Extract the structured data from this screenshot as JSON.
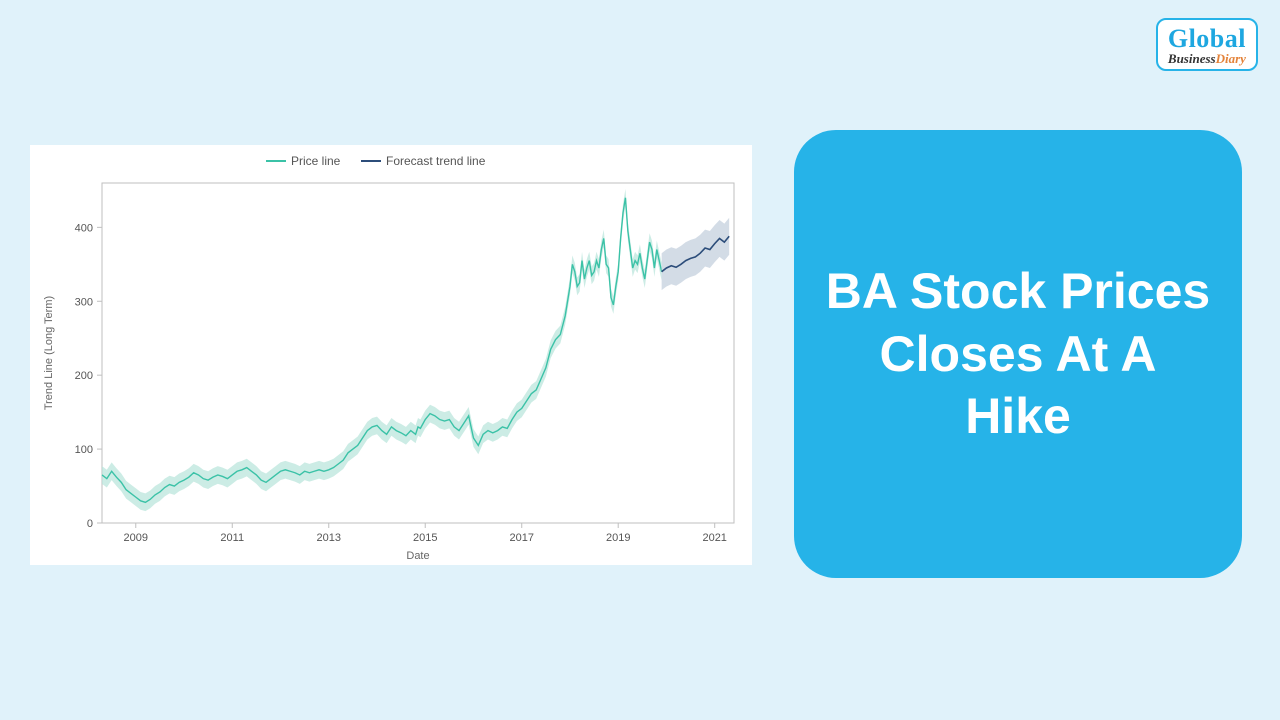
{
  "logo": {
    "top": "Global",
    "business": "Business",
    "diary": "Diary"
  },
  "card": {
    "title": "BA Stock Prices Closes At A Hike"
  },
  "chart": {
    "type": "line",
    "background_color": "#ffffff",
    "plot_border_color": "#bfbfbf",
    "grid_color": "#e5e5e5",
    "ylabel": "Trend Line (Long Term)",
    "xlabel": "Date",
    "label_fontsize": 11,
    "tick_fontsize": 11,
    "ylim": [
      0,
      460
    ],
    "yticks": [
      0,
      100,
      200,
      300,
      400
    ],
    "xticks": [
      "2009",
      "2011",
      "2013",
      "2015",
      "2017",
      "2019",
      "2021"
    ],
    "xrange": [
      2008.3,
      2021.4
    ],
    "legend": [
      {
        "label": "Price line",
        "color": "#3bc2a7",
        "style": "solid"
      },
      {
        "label": "Forecast trend line",
        "color": "#2c4d7a",
        "style": "solid"
      }
    ],
    "price_color": "#3bc2a7",
    "price_band_color": "#b7e4da",
    "price_line_width": 1.4,
    "price_band_halfwidth": 12,
    "forecast_color": "#2c4d7a",
    "forecast_band_color": "#c8d3e0",
    "forecast_line_width": 1.6,
    "forecast_band_halfwidth": 25,
    "price_series": [
      [
        2008.3,
        65
      ],
      [
        2008.4,
        60
      ],
      [
        2008.5,
        70
      ],
      [
        2008.6,
        62
      ],
      [
        2008.7,
        55
      ],
      [
        2008.8,
        45
      ],
      [
        2008.9,
        40
      ],
      [
        2009.0,
        35
      ],
      [
        2009.1,
        30
      ],
      [
        2009.2,
        28
      ],
      [
        2009.3,
        32
      ],
      [
        2009.4,
        38
      ],
      [
        2009.5,
        42
      ],
      [
        2009.6,
        48
      ],
      [
        2009.7,
        52
      ],
      [
        2009.8,
        50
      ],
      [
        2009.9,
        55
      ],
      [
        2010.0,
        58
      ],
      [
        2010.1,
        62
      ],
      [
        2010.2,
        68
      ],
      [
        2010.3,
        65
      ],
      [
        2010.4,
        60
      ],
      [
        2010.5,
        58
      ],
      [
        2010.6,
        62
      ],
      [
        2010.7,
        65
      ],
      [
        2010.8,
        63
      ],
      [
        2010.9,
        60
      ],
      [
        2011.0,
        65
      ],
      [
        2011.1,
        70
      ],
      [
        2011.2,
        72
      ],
      [
        2011.3,
        75
      ],
      [
        2011.4,
        70
      ],
      [
        2011.5,
        65
      ],
      [
        2011.6,
        58
      ],
      [
        2011.7,
        55
      ],
      [
        2011.8,
        60
      ],
      [
        2011.9,
        65
      ],
      [
        2012.0,
        70
      ],
      [
        2012.1,
        72
      ],
      [
        2012.2,
        70
      ],
      [
        2012.3,
        68
      ],
      [
        2012.4,
        65
      ],
      [
        2012.5,
        70
      ],
      [
        2012.6,
        68
      ],
      [
        2012.7,
        70
      ],
      [
        2012.8,
        72
      ],
      [
        2012.9,
        70
      ],
      [
        2013.0,
        72
      ],
      [
        2013.1,
        75
      ],
      [
        2013.2,
        80
      ],
      [
        2013.3,
        85
      ],
      [
        2013.4,
        95
      ],
      [
        2013.5,
        100
      ],
      [
        2013.6,
        105
      ],
      [
        2013.7,
        115
      ],
      [
        2013.8,
        125
      ],
      [
        2013.9,
        130
      ],
      [
        2014.0,
        132
      ],
      [
        2014.1,
        125
      ],
      [
        2014.2,
        120
      ],
      [
        2014.3,
        130
      ],
      [
        2014.4,
        125
      ],
      [
        2014.5,
        122
      ],
      [
        2014.6,
        118
      ],
      [
        2014.7,
        125
      ],
      [
        2014.8,
        120
      ],
      [
        2014.85,
        130
      ],
      [
        2014.9,
        128
      ],
      [
        2015.0,
        140
      ],
      [
        2015.1,
        148
      ],
      [
        2015.2,
        145
      ],
      [
        2015.3,
        140
      ],
      [
        2015.4,
        138
      ],
      [
        2015.5,
        140
      ],
      [
        2015.6,
        130
      ],
      [
        2015.7,
        125
      ],
      [
        2015.8,
        135
      ],
      [
        2015.9,
        145
      ],
      [
        2016.0,
        115
      ],
      [
        2016.1,
        105
      ],
      [
        2016.2,
        120
      ],
      [
        2016.3,
        125
      ],
      [
        2016.4,
        122
      ],
      [
        2016.5,
        125
      ],
      [
        2016.6,
        130
      ],
      [
        2016.7,
        128
      ],
      [
        2016.8,
        140
      ],
      [
        2016.9,
        150
      ],
      [
        2017.0,
        155
      ],
      [
        2017.1,
        165
      ],
      [
        2017.2,
        175
      ],
      [
        2017.3,
        180
      ],
      [
        2017.4,
        195
      ],
      [
        2017.5,
        210
      ],
      [
        2017.6,
        235
      ],
      [
        2017.7,
        248
      ],
      [
        2017.8,
        255
      ],
      [
        2017.9,
        280
      ],
      [
        2018.0,
        320
      ],
      [
        2018.05,
        350
      ],
      [
        2018.1,
        340
      ],
      [
        2018.15,
        320
      ],
      [
        2018.2,
        325
      ],
      [
        2018.25,
        355
      ],
      [
        2018.3,
        330
      ],
      [
        2018.35,
        345
      ],
      [
        2018.4,
        355
      ],
      [
        2018.45,
        335
      ],
      [
        2018.5,
        340
      ],
      [
        2018.55,
        355
      ],
      [
        2018.6,
        345
      ],
      [
        2018.65,
        370
      ],
      [
        2018.7,
        385
      ],
      [
        2018.75,
        350
      ],
      [
        2018.8,
        345
      ],
      [
        2018.85,
        305
      ],
      [
        2018.9,
        295
      ],
      [
        2018.95,
        320
      ],
      [
        2019.0,
        340
      ],
      [
        2019.05,
        385
      ],
      [
        2019.1,
        420
      ],
      [
        2019.15,
        440
      ],
      [
        2019.2,
        395
      ],
      [
        2019.25,
        370
      ],
      [
        2019.3,
        345
      ],
      [
        2019.35,
        355
      ],
      [
        2019.4,
        350
      ],
      [
        2019.45,
        365
      ],
      [
        2019.5,
        345
      ],
      [
        2019.55,
        330
      ],
      [
        2019.6,
        355
      ],
      [
        2019.65,
        380
      ],
      [
        2019.7,
        370
      ],
      [
        2019.75,
        345
      ],
      [
        2019.8,
        370
      ],
      [
        2019.85,
        355
      ],
      [
        2019.9,
        340
      ]
    ],
    "forecast_series": [
      [
        2019.9,
        340
      ],
      [
        2020.0,
        345
      ],
      [
        2020.1,
        348
      ],
      [
        2020.2,
        346
      ],
      [
        2020.3,
        350
      ],
      [
        2020.4,
        355
      ],
      [
        2020.5,
        358
      ],
      [
        2020.6,
        360
      ],
      [
        2020.7,
        365
      ],
      [
        2020.8,
        372
      ],
      [
        2020.9,
        370
      ],
      [
        2021.0,
        378
      ],
      [
        2021.1,
        385
      ],
      [
        2021.2,
        380
      ],
      [
        2021.3,
        388
      ]
    ]
  }
}
